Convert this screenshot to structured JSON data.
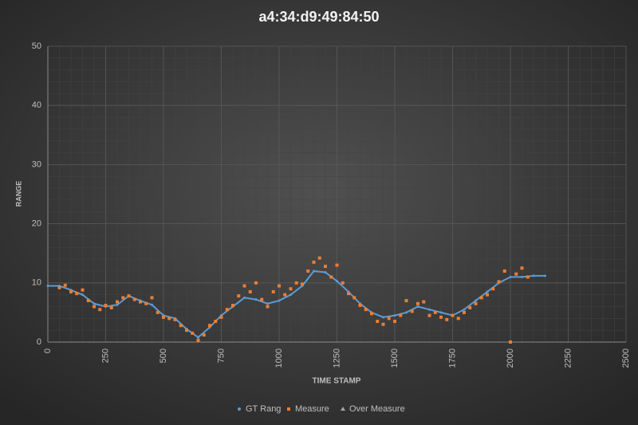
{
  "chart_data": {
    "type": "scatter",
    "title": "a4:34:d9:49:84:50",
    "x_label": "TIME STAMP",
    "y_label": "RANGE",
    "xlim": [
      0,
      2500
    ],
    "xticks": [
      0,
      250,
      500,
      750,
      1000,
      1250,
      1500,
      1750,
      2000,
      2250,
      2500
    ],
    "ylim": [
      0,
      50
    ],
    "yticks": [
      0,
      10,
      20,
      30,
      40,
      50
    ],
    "grid": true,
    "legend": "bottom",
    "series": [
      {
        "name": "GT Rang",
        "color": "#5b9bd5",
        "line": true,
        "x": [
          0,
          50,
          100,
          150,
          200,
          250,
          300,
          350,
          400,
          450,
          500,
          550,
          600,
          650,
          700,
          750,
          800,
          850,
          900,
          950,
          1000,
          1050,
          1100,
          1150,
          1200,
          1250,
          1300,
          1350,
          1400,
          1450,
          1500,
          1550,
          1600,
          1650,
          1700,
          1750,
          1800,
          1850,
          1900,
          1950,
          2000,
          2050,
          2100,
          2150
        ],
        "values": [
          9.5,
          9.5,
          8.8,
          8,
          6.5,
          6,
          6.3,
          7.8,
          7,
          6.3,
          4.5,
          4,
          2.2,
          0.8,
          2.5,
          4.5,
          6,
          7.5,
          7.2,
          6.5,
          7,
          8,
          9.5,
          12,
          11.8,
          10.3,
          8.5,
          6.5,
          5,
          4.2,
          4.5,
          5,
          6,
          5.5,
          5,
          4.5,
          5.5,
          7,
          8.5,
          10,
          11,
          11,
          11.2,
          11.2
        ]
      },
      {
        "name": "Measure",
        "color": "#ed7d31",
        "line": false,
        "x": [
          50,
          75,
          100,
          125,
          150,
          175,
          200,
          225,
          250,
          275,
          300,
          325,
          350,
          375,
          400,
          425,
          450,
          475,
          500,
          525,
          550,
          575,
          600,
          625,
          650,
          675,
          700,
          725,
          750,
          775,
          800,
          825,
          850,
          875,
          900,
          925,
          950,
          975,
          1000,
          1025,
          1050,
          1075,
          1100,
          1125,
          1150,
          1175,
          1200,
          1225,
          1250,
          1275,
          1300,
          1325,
          1350,
          1375,
          1400,
          1425,
          1450,
          1475,
          1500,
          1525,
          1550,
          1575,
          1600,
          1625,
          1650,
          1675,
          1700,
          1725,
          1750,
          1775,
          1800,
          1825,
          1850,
          1875,
          1900,
          1925,
          1950,
          1975,
          2000,
          2025,
          2050,
          2075
        ],
        "values": [
          9.2,
          9.6,
          8.5,
          8.2,
          8.8,
          7,
          6,
          5.5,
          6.2,
          5.8,
          6.8,
          7.5,
          7.8,
          7.2,
          6.8,
          6.5,
          7.5,
          5,
          4.2,
          4,
          3.8,
          2.8,
          2,
          1.5,
          0.3,
          1.2,
          2.8,
          3.5,
          4.2,
          5.5,
          6.2,
          7.8,
          9.5,
          8.5,
          10,
          7.2,
          6,
          8.5,
          9.5,
          8,
          9,
          10,
          9.8,
          12,
          13.5,
          14.2,
          12.8,
          11,
          13,
          10,
          8.2,
          7.5,
          6.2,
          5.5,
          4.8,
          3.5,
          3,
          4,
          3.5,
          4.5,
          7,
          5.2,
          6.5,
          6.8,
          4.5,
          5,
          4.2,
          3.8,
          4.5,
          4,
          5,
          5.8,
          6.5,
          7.5,
          8,
          9,
          10.2,
          12,
          0,
          11.5,
          12.5,
          11
        ]
      },
      {
        "name": "Over Measure",
        "color": "#a5a5a5",
        "line": false,
        "x": [],
        "values": []
      }
    ]
  }
}
